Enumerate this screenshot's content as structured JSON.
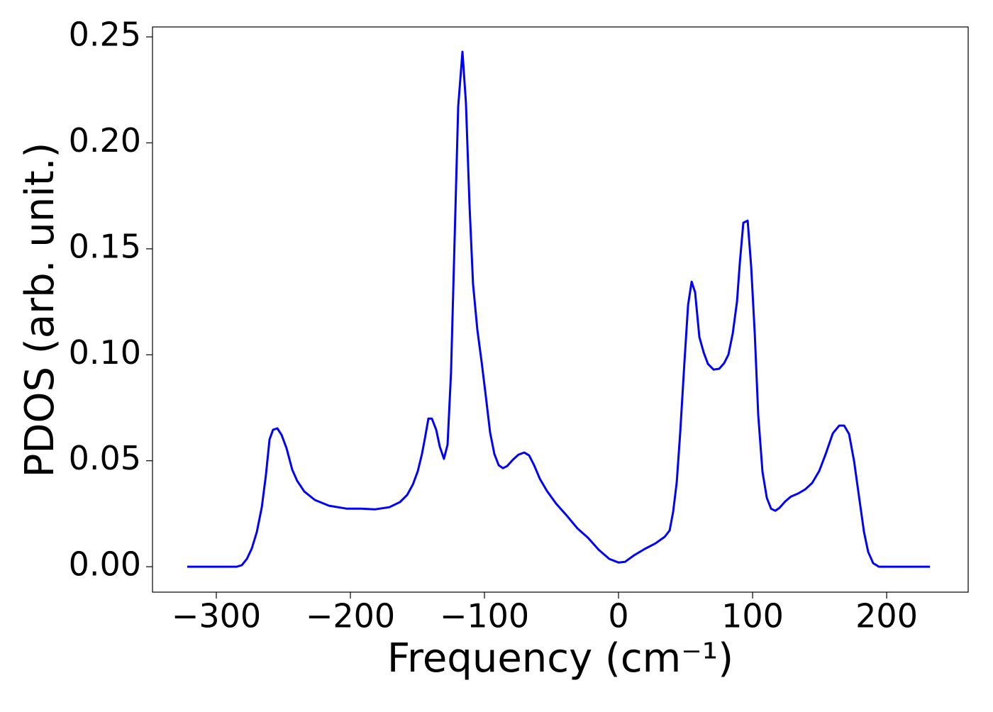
{
  "chart_data": {
    "type": "line",
    "xlabel": "Frequency (cm⁻¹)",
    "ylabel": "PDOS (arb. unit.)",
    "x": [
      -321.7,
      -284.7,
      -281,
      -277.2,
      -273.5,
      -269.8,
      -266.1,
      -263,
      -260.3,
      -257.7,
      -254.5,
      -251.3,
      -247.6,
      -243.4,
      -239.7,
      -234.4,
      -226.5,
      -215.9,
      -202.6,
      -192,
      -181.5,
      -170.9,
      -163,
      -157.7,
      -153.4,
      -149.7,
      -146.6,
      -144.4,
      -141.8,
      -139.2,
      -136,
      -133.3,
      -130.2,
      -127.5,
      -124.9,
      -119.6,
      -116.4,
      -113.8,
      -111.1,
      -108.5,
      -105.3,
      -102.1,
      -98.9,
      -95.8,
      -92.6,
      -89.4,
      -86.2,
      -83.1,
      -78.8,
      -74.6,
      -70.4,
      -66.7,
      -63,
      -58.7,
      -53.4,
      -46.6,
      -38.6,
      -30.7,
      -22.8,
      -14.8,
      -6.9,
      0,
      4.8,
      11.6,
      19.6,
      27.5,
      34.4,
      38.1,
      40.7,
      43.4,
      46,
      49.2,
      51.9,
      54.5,
      57.1,
      60.3,
      63.5,
      66.7,
      70.9,
      75.1,
      78.8,
      82,
      85.2,
      88.4,
      90.5,
      93.1,
      96.3,
      98.9,
      101.6,
      104.2,
      107.4,
      110.6,
      113.8,
      116.9,
      120.1,
      124.3,
      128.6,
      133.9,
      139.2,
      144.4,
      149.7,
      154.5,
      159.8,
      164.6,
      168.3,
      172,
      175.7,
      179.4,
      183.1,
      186.2,
      189.9,
      194.2,
      232.3
    ],
    "series": [
      {
        "color": "#0000ff",
        "values": [
          0,
          0,
          0.0007,
          0.0037,
          0.0087,
          0.0164,
          0.0281,
          0.0432,
          0.06,
          0.0646,
          0.0653,
          0.0622,
          0.0559,
          0.0458,
          0.0405,
          0.0355,
          0.0315,
          0.0288,
          0.0274,
          0.0274,
          0.0271,
          0.0281,
          0.0305,
          0.0338,
          0.0388,
          0.0452,
          0.0532,
          0.0606,
          0.0699,
          0.0699,
          0.0646,
          0.0566,
          0.0509,
          0.0576,
          0.0917,
          0.2172,
          0.243,
          0.2189,
          0.1703,
          0.1335,
          0.1118,
          0.0967,
          0.08,
          0.0633,
          0.0532,
          0.0479,
          0.0465,
          0.0475,
          0.0505,
          0.0529,
          0.0539,
          0.0525,
          0.0479,
          0.0415,
          0.0358,
          0.0298,
          0.0241,
          0.0181,
          0.0137,
          0.008,
          0.0037,
          0.002,
          0.0023,
          0.0054,
          0.0084,
          0.011,
          0.0141,
          0.0171,
          0.0258,
          0.0398,
          0.0633,
          0.0967,
          0.1235,
          0.1345,
          0.1295,
          0.1084,
          0.1011,
          0.0957,
          0.093,
          0.0934,
          0.0961,
          0.1001,
          0.1101,
          0.1252,
          0.1436,
          0.1623,
          0.1633,
          0.1419,
          0.1101,
          0.0716,
          0.0448,
          0.0325,
          0.0274,
          0.0264,
          0.0278,
          0.0308,
          0.0331,
          0.0345,
          0.0365,
          0.0395,
          0.0452,
          0.0532,
          0.0629,
          0.0666,
          0.0666,
          0.0626,
          0.0499,
          0.0331,
          0.0164,
          0.007,
          0.0017,
          0,
          0
        ]
      }
    ],
    "xlim": [
      -347.6,
      260.8
    ],
    "ylim": [
      -0.012,
      0.2547
    ],
    "xticks": [
      {
        "value": -300,
        "label": "−300"
      },
      {
        "value": -200,
        "label": "−200"
      },
      {
        "value": -100,
        "label": "−100"
      },
      0,
      100,
      200
    ],
    "yticks": [
      {
        "value": 0,
        "label": "0.00"
      },
      0.05,
      {
        "value": 0.1,
        "label": "0.10"
      },
      0.15,
      {
        "value": 0.2,
        "label": "0.20"
      },
      0.25
    ]
  }
}
